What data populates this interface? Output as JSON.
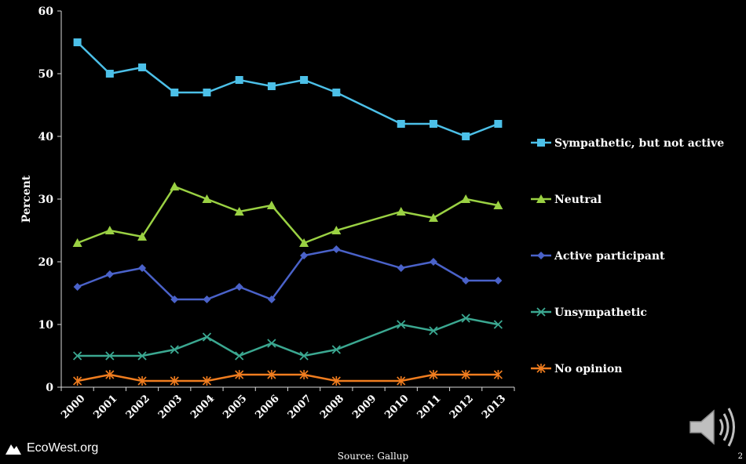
{
  "chart_data": {
    "type": "line",
    "x": [
      "2000",
      "2001",
      "2002",
      "2003",
      "2004",
      "2005",
      "2006",
      "2007",
      "2008",
      "2009",
      "2010",
      "2011",
      "2012",
      "2013"
    ],
    "ylabel": "Percent",
    "ylim": [
      0,
      60
    ],
    "yticks": [
      0,
      10,
      20,
      30,
      40,
      50,
      60
    ],
    "grid": false,
    "legend_position": "right",
    "series": [
      {
        "name": "Sympathetic, but not active",
        "color": "#4cc0e8",
        "marker": "square",
        "values": [
          55,
          50,
          51,
          47,
          47,
          49,
          48,
          49,
          47,
          null,
          42,
          42,
          40,
          42
        ]
      },
      {
        "name": "Neutral",
        "color": "#9ad143",
        "marker": "triangle",
        "values": [
          23,
          25,
          24,
          32,
          30,
          28,
          29,
          23,
          25,
          null,
          28,
          27,
          30,
          29
        ]
      },
      {
        "name": "Active participant",
        "color": "#4a62c9",
        "marker": "diamond",
        "values": [
          16,
          18,
          19,
          14,
          14,
          16,
          14,
          21,
          22,
          null,
          19,
          20,
          17,
          17
        ]
      },
      {
        "name": "Unsympathetic",
        "color": "#3ba891",
        "marker": "x",
        "values": [
          5,
          5,
          5,
          6,
          8,
          5,
          7,
          5,
          6,
          null,
          10,
          9,
          11,
          10
        ]
      },
      {
        "name": "No opinion",
        "color": "#f07d1f",
        "marker": "star",
        "values": [
          1,
          2,
          1,
          1,
          1,
          2,
          2,
          2,
          1,
          null,
          1,
          2,
          2,
          2
        ]
      }
    ]
  },
  "footer": {
    "logo_text": "EcoWest.org",
    "source": "Source: Gallup",
    "page_number": "2"
  },
  "icons": {
    "speaker": "speaker-icon",
    "logo": "mountain-logo-icon"
  }
}
